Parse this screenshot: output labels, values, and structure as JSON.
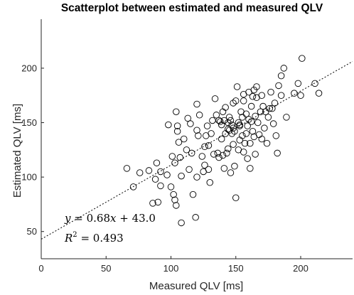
{
  "chart_data": {
    "type": "scatter",
    "title": "Scatterplot between estimated and measured QLV",
    "xlabel": "Measured QLV [ms]",
    "ylabel": "Estimated QLV [ms]",
    "xlim": [
      0,
      240
    ],
    "ylim": [
      25,
      245
    ],
    "xticks": [
      "0",
      "50",
      "100",
      "150",
      "200"
    ],
    "yticks": [
      "50",
      "100",
      "150",
      "200"
    ],
    "xtick_values": [
      0,
      50,
      100,
      150,
      200
    ],
    "ytick_values": [
      50,
      100,
      150,
      200
    ],
    "grid": false,
    "marker": "open-circle",
    "colors": {
      "marker": "#000000",
      "fit_line": "#000000",
      "axis": "#262626"
    },
    "fit_line": {
      "slope": 0.68,
      "intercept": 43.0,
      "style": "dotted",
      "x_range": [
        0,
        240
      ]
    },
    "annotations": {
      "equation": {
        "y": "y",
        "eq": " = 0.68",
        "x": "x",
        "rest": " + 43.0"
      },
      "r2": {
        "R": "R",
        "sup": "2",
        "rest": " = 0.493"
      }
    },
    "points": [
      [
        66,
        108
      ],
      [
        71,
        91
      ],
      [
        76,
        104
      ],
      [
        83,
        106
      ],
      [
        86,
        76
      ],
      [
        88,
        98
      ],
      [
        89,
        113
      ],
      [
        90,
        77
      ],
      [
        92,
        105
      ],
      [
        92,
        92
      ],
      [
        97,
        102
      ],
      [
        98,
        148
      ],
      [
        100,
        91
      ],
      [
        101,
        119
      ],
      [
        102,
        84
      ],
      [
        103,
        79
      ],
      [
        103,
        113
      ],
      [
        104,
        160
      ],
      [
        104,
        74
      ],
      [
        105,
        142
      ],
      [
        105,
        147
      ],
      [
        106,
        132
      ],
      [
        107,
        118
      ],
      [
        108,
        101
      ],
      [
        108,
        58
      ],
      [
        110,
        135
      ],
      [
        112,
        125
      ],
      [
        113,
        154
      ],
      [
        114,
        107
      ],
      [
        115,
        149
      ],
      [
        116,
        122
      ],
      [
        117,
        84
      ],
      [
        119,
        63
      ],
      [
        120,
        167
      ],
      [
        120,
        100
      ],
      [
        120,
        143
      ],
      [
        121,
        138
      ],
      [
        122,
        157
      ],
      [
        124,
        119
      ],
      [
        126,
        128
      ],
      [
        126,
        111
      ],
      [
        127,
        138
      ],
      [
        128,
        147
      ],
      [
        129,
        107
      ],
      [
        129,
        129
      ],
      [
        130,
        95
      ],
      [
        131,
        140
      ],
      [
        132,
        152
      ],
      [
        133,
        121
      ],
      [
        134,
        172
      ],
      [
        135,
        157
      ],
      [
        136,
        122
      ],
      [
        137,
        152
      ],
      [
        138,
        151
      ],
      [
        139,
        148
      ],
      [
        139,
        135
      ],
      [
        140,
        160
      ],
      [
        140,
        120
      ],
      [
        141,
        152
      ],
      [
        141,
        108
      ],
      [
        142,
        140
      ],
      [
        142,
        164
      ],
      [
        143,
        122
      ],
      [
        144,
        150
      ],
      [
        144,
        126
      ],
      [
        145,
        155
      ],
      [
        145,
        143
      ],
      [
        146,
        152
      ],
      [
        146,
        104
      ],
      [
        147,
        148
      ],
      [
        147,
        140
      ],
      [
        148,
        130
      ],
      [
        148,
        168
      ],
      [
        149,
        110
      ],
      [
        149,
        142
      ],
      [
        150,
        81
      ],
      [
        150,
        170
      ],
      [
        151,
        183
      ],
      [
        152,
        150
      ],
      [
        152,
        125
      ],
      [
        153,
        147
      ],
      [
        153,
        134
      ],
      [
        154,
        160
      ],
      [
        155,
        155
      ],
      [
        155,
        138
      ],
      [
        156,
        123
      ],
      [
        156,
        170
      ],
      [
        157,
        131
      ],
      [
        158,
        158
      ],
      [
        158,
        140
      ],
      [
        159,
        147
      ],
      [
        159,
        117
      ],
      [
        160,
        178
      ],
      [
        160,
        153
      ],
      [
        161,
        131
      ],
      [
        161,
        108
      ],
      [
        162,
        165
      ],
      [
        162,
        151
      ],
      [
        163,
        142
      ],
      [
        163,
        174
      ],
      [
        164,
        180
      ],
      [
        164,
        137
      ],
      [
        165,
        156
      ],
      [
        165,
        121
      ],
      [
        166,
        173
      ],
      [
        167,
        150
      ],
      [
        168,
        139
      ],
      [
        169,
        160
      ],
      [
        170,
        135
      ],
      [
        170,
        175
      ],
      [
        171,
        165
      ],
      [
        172,
        145
      ],
      [
        173,
        160
      ],
      [
        174,
        131
      ],
      [
        175,
        155
      ],
      [
        176,
        163
      ],
      [
        177,
        178
      ],
      [
        178,
        163
      ],
      [
        179,
        149
      ],
      [
        180,
        168
      ],
      [
        181,
        138
      ],
      [
        182,
        122
      ],
      [
        183,
        184
      ],
      [
        185,
        193
      ],
      [
        185,
        175
      ],
      [
        187,
        200
      ],
      [
        189,
        155
      ],
      [
        195,
        177
      ],
      [
        198,
        186
      ],
      [
        200,
        175
      ],
      [
        201,
        209
      ],
      [
        211,
        186
      ],
      [
        214,
        177
      ],
      [
        156,
        176
      ],
      [
        148,
        145
      ],
      [
        137,
        118
      ],
      [
        125,
        105
      ],
      [
        144,
        144
      ],
      [
        153,
        148
      ],
      [
        166,
        183
      ]
    ]
  }
}
